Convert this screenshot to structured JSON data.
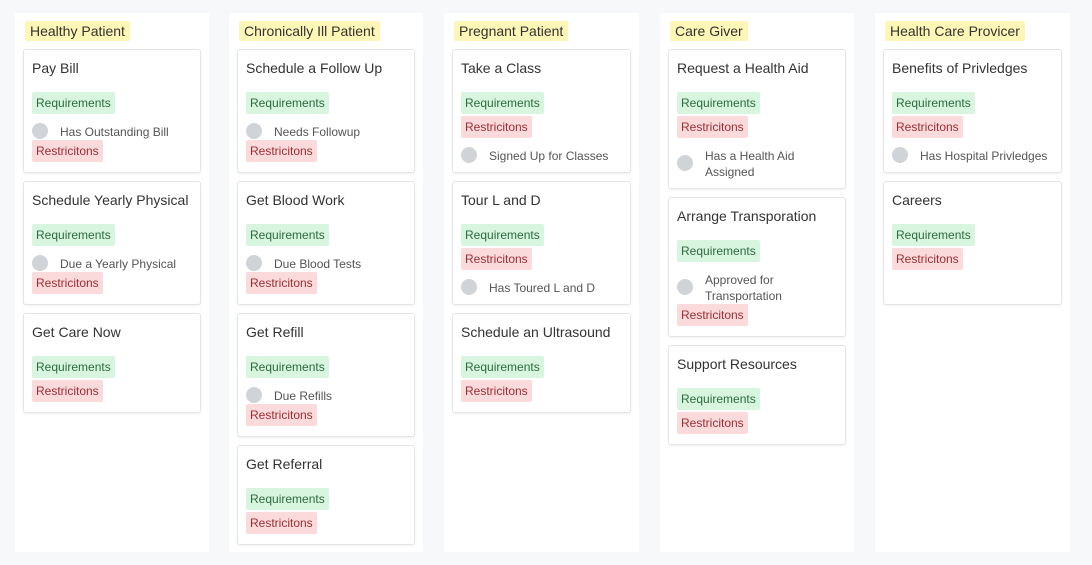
{
  "columns": [
    {
      "title": "Healthy Patient",
      "cards": [
        {
          "title": "Pay Bill",
          "requirements": "Requirements",
          "restrictions": "Restricitons",
          "check": "Has Outstanding Bill"
        },
        {
          "title": "Schedule Yearly Physical",
          "requirements": "Requirements",
          "restrictions": "Restricitons",
          "check": "Due a Yearly Physical"
        },
        {
          "title": "Get Care Now",
          "requirements": "Requirements",
          "restrictions": "Restricitons"
        }
      ]
    },
    {
      "title": "Chronically Ill Patient",
      "cards": [
        {
          "title": "Schedule a Follow Up",
          "requirements": "Requirements",
          "restrictions": "Restricitons",
          "check": "Needs Followup"
        },
        {
          "title": "Get Blood Work",
          "requirements": "Requirements",
          "restrictions": "Restricitons",
          "check": "Due Blood Tests"
        },
        {
          "title": "Get Refill",
          "requirements": "Requirements",
          "restrictions": "Restricitons",
          "check": "Due Refills"
        },
        {
          "title": "Get Referral",
          "requirements": "Requirements",
          "restrictions": "Restricitons"
        }
      ]
    },
    {
      "title": "Pregnant Patient",
      "cards": [
        {
          "title": "Take a Class",
          "requirements": "Requirements",
          "restrictions": "Restricitons",
          "check": "Signed Up for Classes"
        },
        {
          "title": "Tour L and D",
          "requirements": "Requirements",
          "restrictions": "Restricitons",
          "check": "Has Toured L and D"
        },
        {
          "title": "Schedule an Ultrasound",
          "requirements": "Requirements",
          "restrictions": "Restricitons"
        }
      ]
    },
    {
      "title": "Care Giver",
      "cards": [
        {
          "title": "Request a Health Aid",
          "requirements": "Requirements",
          "restrictions": "Restricitons",
          "check": "Has a Health Aid\nAssigned"
        },
        {
          "title": "Arrange Transporation",
          "requirements": "Requirements",
          "restrictions": "Restricitons",
          "check": "Approved for\nTransportation"
        },
        {
          "title": "Support Resources",
          "requirements": "Requirements",
          "restrictions": "Restricitons"
        }
      ]
    },
    {
      "title": "Health Care Provicer",
      "cards": [
        {
          "title": "Benefits of Privledges",
          "requirements": "Requirements",
          "restrictions": "Restricitons",
          "check": "Has Hospital Privledges"
        },
        {
          "title": "Careers",
          "requirements": "Requirements",
          "restrictions": "Restricitons"
        }
      ]
    }
  ]
}
